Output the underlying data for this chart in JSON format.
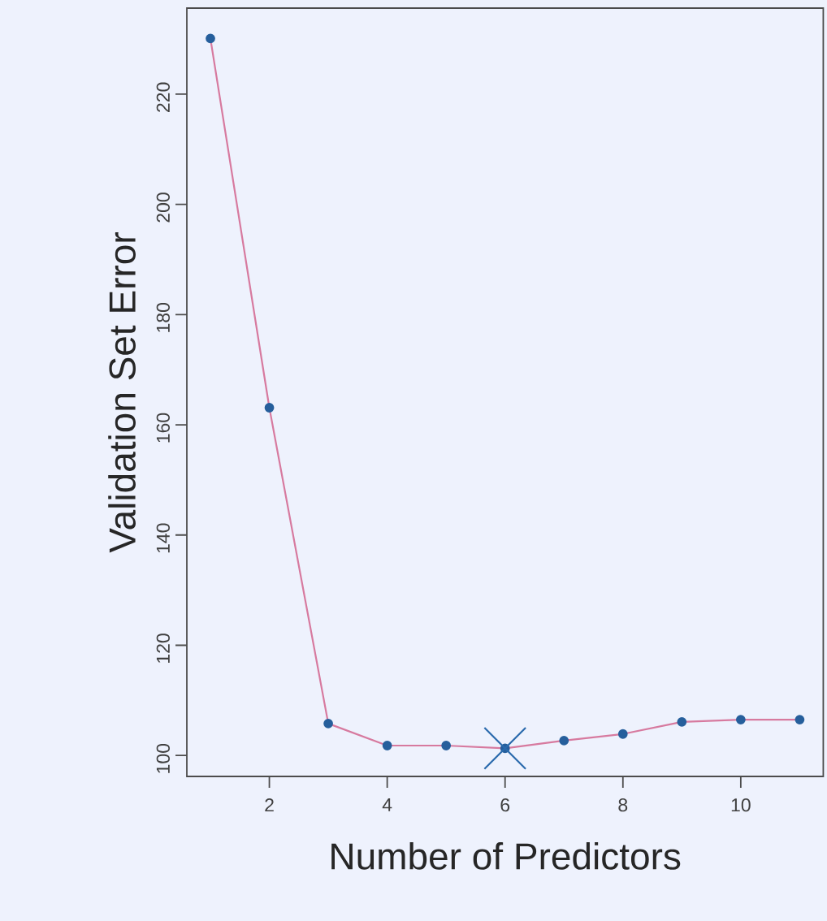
{
  "chart_data": {
    "type": "line",
    "xlabel": "Number of Predictors",
    "ylabel": "Validation Set Error",
    "x": [
      1,
      2,
      3,
      4,
      5,
      6,
      7,
      8,
      9,
      10,
      11
    ],
    "xlim": [
      0.6,
      11.4
    ],
    "ylim": [
      96.2,
      235.6
    ],
    "xticks": [
      2,
      4,
      6,
      8,
      10
    ],
    "yticks": [
      100,
      120,
      140,
      160,
      180,
      200,
      220
    ],
    "grid": false,
    "marker": "circle",
    "line_style": "solid",
    "series": [
      {
        "color": "#d77a9f",
        "values": [
          230.1,
          163.1,
          105.8,
          101.8,
          101.8,
          101.3,
          102.7,
          103.9,
          106.1,
          106.5,
          106.5
        ]
      },
      {
        "type": "scatter",
        "color": "#2a6aad",
        "marker": "cross",
        "x": [
          6
        ],
        "values": [
          101.3
        ]
      }
    ]
  }
}
